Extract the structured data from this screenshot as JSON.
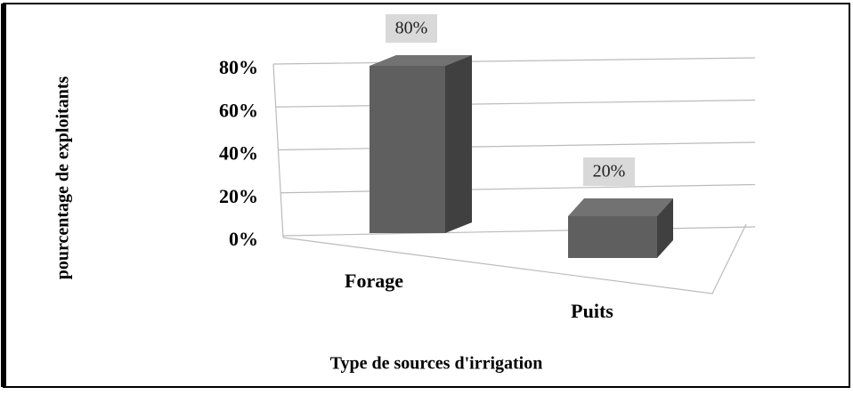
{
  "chart_data": {
    "type": "bar3d",
    "categories": [
      "Forage",
      "Puits"
    ],
    "values": [
      80,
      20
    ],
    "value_labels": [
      "80%",
      "20%"
    ],
    "ylabel": "pourcentage de exploitants",
    "xlabel": "Type de sources d'irrigation",
    "ylim": [
      0,
      80
    ],
    "yticks": [
      {
        "value": 0,
        "label": "0%"
      },
      {
        "value": 20,
        "label": "20%"
      },
      {
        "value": 40,
        "label": "40%"
      },
      {
        "value": 60,
        "label": "60%"
      },
      {
        "value": 80,
        "label": "80%"
      }
    ],
    "color": "#5f5f5f",
    "grid": true
  }
}
